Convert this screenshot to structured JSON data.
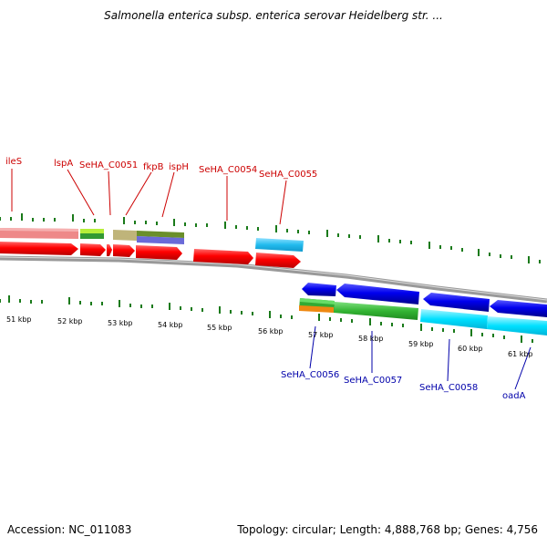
{
  "title": "Salmonella enterica subsp. enterica serovar Heidelberg str. ...",
  "footer": {
    "accession": "Accession: NC_011083",
    "summary": "Topology: circular; Length: 4,888,768 bp; Genes: 4,756"
  },
  "colors": {
    "forward_label": "#cc0000",
    "reverse_label": "#0000aa",
    "tick": "#1a7a1a",
    "backbone": "#888888"
  },
  "forward_gene_labels": [
    "ileS",
    "lspA",
    "SeHA_C0051",
    "fkpB",
    "ispH",
    "SeHA_C0054",
    "SeHA_C0055"
  ],
  "reverse_gene_labels": [
    "SeHA_C0056",
    "SeHA_C0057",
    "SeHA_C0058",
    "oadA"
  ],
  "kbp_labels": [
    "51 kbp",
    "52 kbp",
    "53 kbp",
    "54 kbp",
    "55 kbp",
    "56 kbp",
    "57 kbp",
    "58 kbp",
    "59 kbp",
    "60 kbp",
    "61 kbp"
  ]
}
